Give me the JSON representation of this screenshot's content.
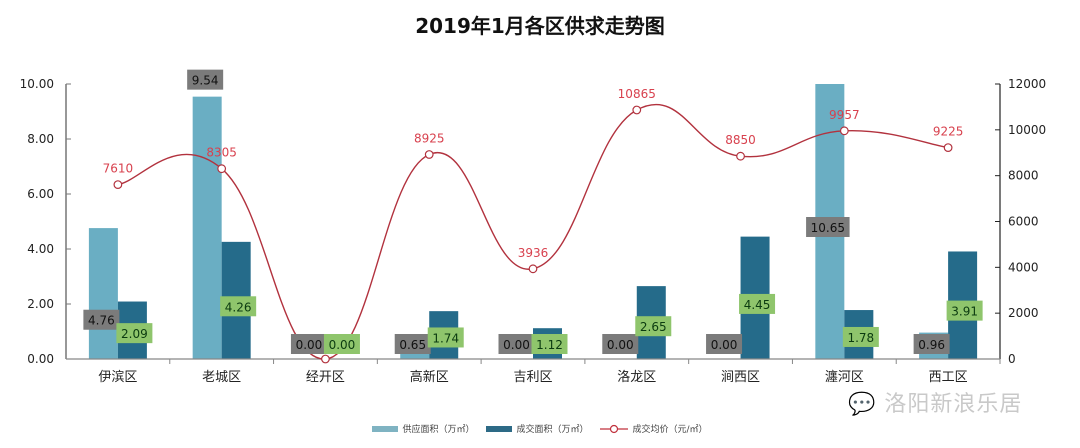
{
  "chart_data": {
    "type": "bar",
    "title": "2019年1月各区供求走势图",
    "categories": [
      "伊滨区",
      "老城区",
      "经开区",
      "高新区",
      "吉利区",
      "洛龙区",
      "涧西区",
      "瀍河区",
      "西工区"
    ],
    "series": [
      {
        "name": "供应面积（万㎡）",
        "type": "bar",
        "axis": "left",
        "color": "#6aaec3",
        "values": [
          4.76,
          9.54,
          0.0,
          0.65,
          0.0,
          0.0,
          0.0,
          10.65,
          0.96
        ]
      },
      {
        "name": "成交面积（万㎡）",
        "type": "bar",
        "axis": "left",
        "color": "#256b8a",
        "values": [
          2.09,
          4.26,
          0.0,
          1.74,
          1.12,
          2.65,
          4.45,
          1.78,
          3.91
        ]
      },
      {
        "name": "成交均价（元/㎡）",
        "type": "line",
        "axis": "right",
        "color": "#b2323e",
        "values": [
          7610,
          8305,
          0,
          8925,
          3936,
          10865,
          8850,
          9957,
          9225
        ]
      }
    ],
    "left_axis": {
      "ylim": [
        0,
        10
      ],
      "ticks": [
        "0.00",
        "2.00",
        "4.00",
        "6.00",
        "8.00",
        "10.00"
      ]
    },
    "right_axis": {
      "ylim": [
        0,
        12000
      ],
      "ticks": [
        "0",
        "2000",
        "4000",
        "6000",
        "8000",
        "10000",
        "12000"
      ]
    },
    "xlabel": "",
    "ylabel": "",
    "legend_position": "bottom",
    "grid": false
  },
  "legend": {
    "supply": "供应面积（万㎡）",
    "deal": "成交面积（万㎡）",
    "price": "成交均价（元/㎡）"
  },
  "watermark": "洛阳新浪乐居"
}
